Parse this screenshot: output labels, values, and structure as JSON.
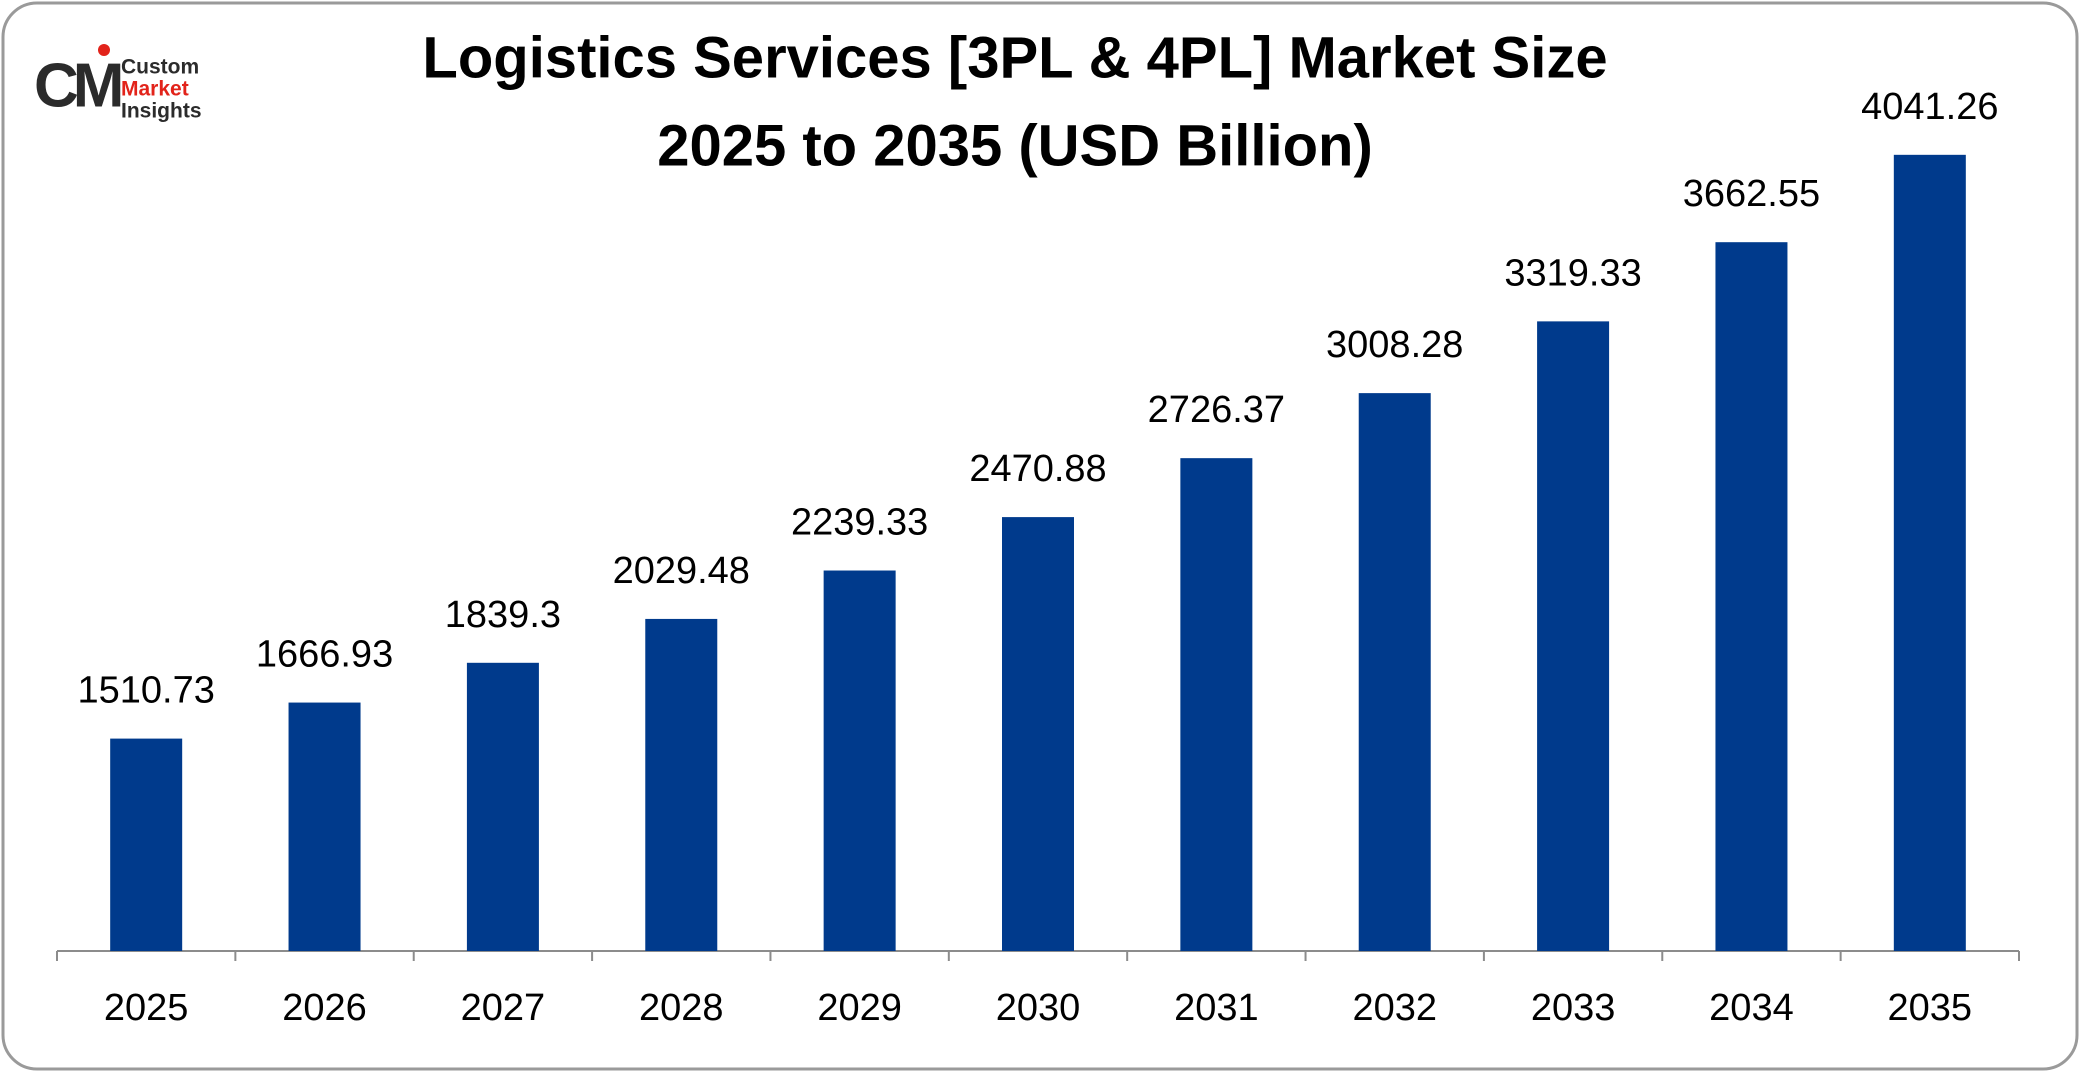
{
  "logo": {
    "monogram": "CM",
    "lines": [
      "Custom",
      "Market",
      "Insights"
    ]
  },
  "chart_data": {
    "type": "bar",
    "title": [
      "Logistics Services [3PL & 4PL] Market Size",
      "2025 to 2035 (USD Billion)"
    ],
    "categories": [
      "2025",
      "2026",
      "2027",
      "2028",
      "2029",
      "2030",
      "2031",
      "2032",
      "2033",
      "2034",
      "2035"
    ],
    "values": [
      1510.73,
      1666.93,
      1839.3,
      2029.48,
      2239.33,
      2470.88,
      2726.37,
      3008.28,
      3319.33,
      3662.55,
      4041.26
    ],
    "color": "#003a8c",
    "ylim": [
      590,
      4500
    ]
  }
}
